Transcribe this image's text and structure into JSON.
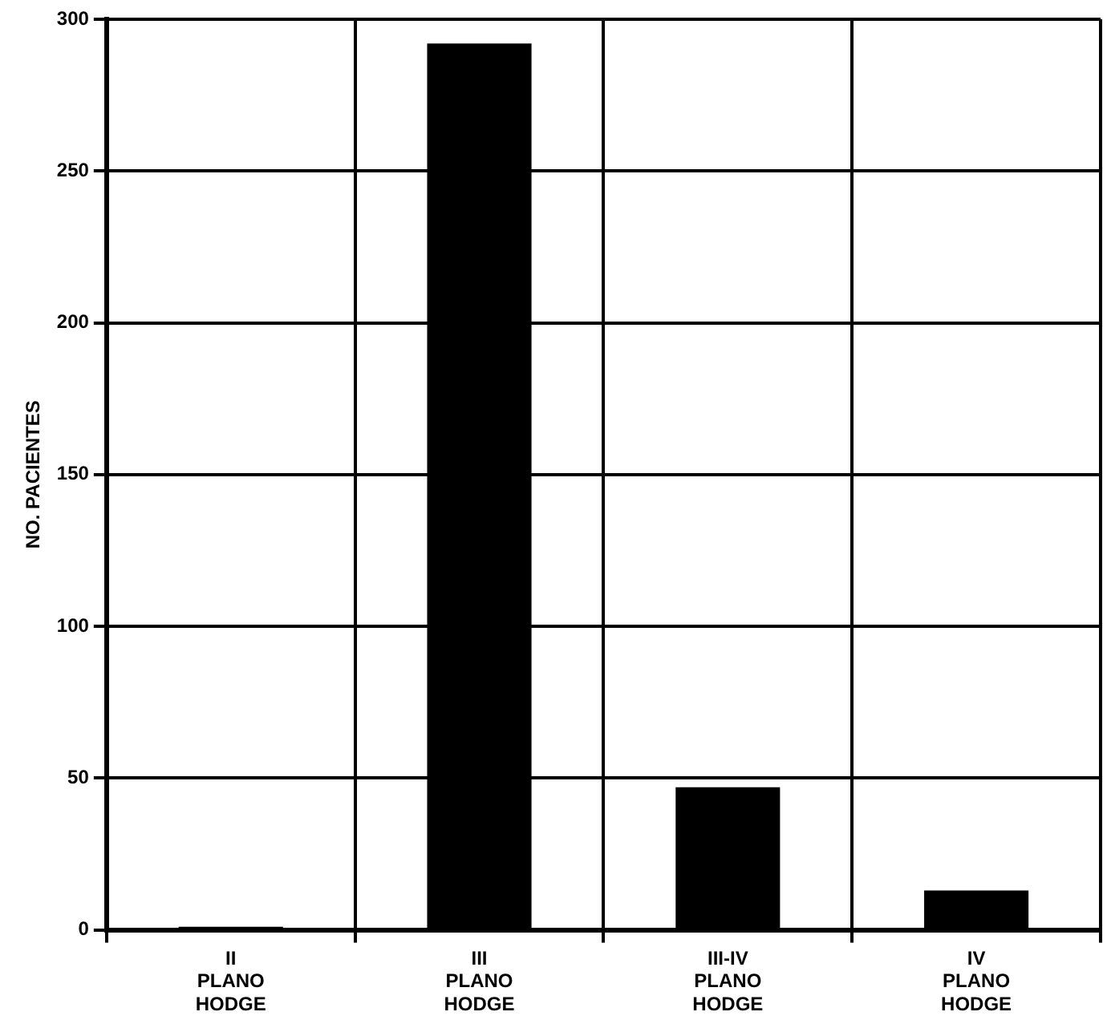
{
  "chart_data": {
    "type": "bar",
    "ylabel": "NO. PACIENTES",
    "categories": [
      "II\nPLANO\nHODGE",
      "III\nPLANO\nHODGE",
      "III-IV\nPLANO\nHODGE",
      "IV\nPLANO\nHODGE"
    ],
    "values": [
      1,
      292,
      47,
      13
    ],
    "color": "#000000",
    "ylim": [
      0,
      300
    ],
    "yticks": [
      0,
      50,
      100,
      150,
      200,
      250,
      300
    ],
    "grid": true,
    "legend": false
  }
}
